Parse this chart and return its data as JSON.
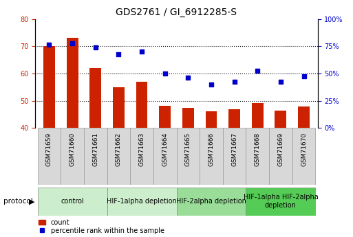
{
  "title": "GDS2761 / GI_6912285-S",
  "samples": [
    "GSM71659",
    "GSM71660",
    "GSM71661",
    "GSM71662",
    "GSM71663",
    "GSM71664",
    "GSM71665",
    "GSM71666",
    "GSM71667",
    "GSM71668",
    "GSM71669",
    "GSM71670"
  ],
  "count_values": [
    70.0,
    73.2,
    62.0,
    55.0,
    57.0,
    48.2,
    47.5,
    46.0,
    47.0,
    49.2,
    46.5,
    48.0
  ],
  "percentile_values": [
    70.5,
    71.0,
    69.5,
    67.0,
    68.0,
    60.0,
    58.5,
    56.0,
    57.0,
    61.0,
    57.0,
    59.0
  ],
  "left_ylim": [
    40,
    80
  ],
  "left_yticks": [
    40,
    50,
    60,
    70,
    80
  ],
  "bar_color": "#cc2200",
  "dot_color": "#0000cc",
  "protocol_groups": [
    {
      "label": "control",
      "start": 0,
      "end": 2,
      "color": "#cceecc"
    },
    {
      "label": "HIF-1alpha depletion",
      "start": 3,
      "end": 5,
      "color": "#cceecc"
    },
    {
      "label": "HIF-2alpha depletion",
      "start": 6,
      "end": 8,
      "color": "#99dd99"
    },
    {
      "label": "HIF-1alpha HIF-2alpha\ndepletion",
      "start": 9,
      "end": 11,
      "color": "#55cc55"
    }
  ],
  "protocol_label": "protocol",
  "legend_count_label": "count",
  "legend_pct_label": "percentile rank within the sample",
  "bar_width": 0.5,
  "title_fontsize": 10,
  "tick_fontsize": 7,
  "sample_fontsize": 6.5,
  "proto_fontsize": 7
}
